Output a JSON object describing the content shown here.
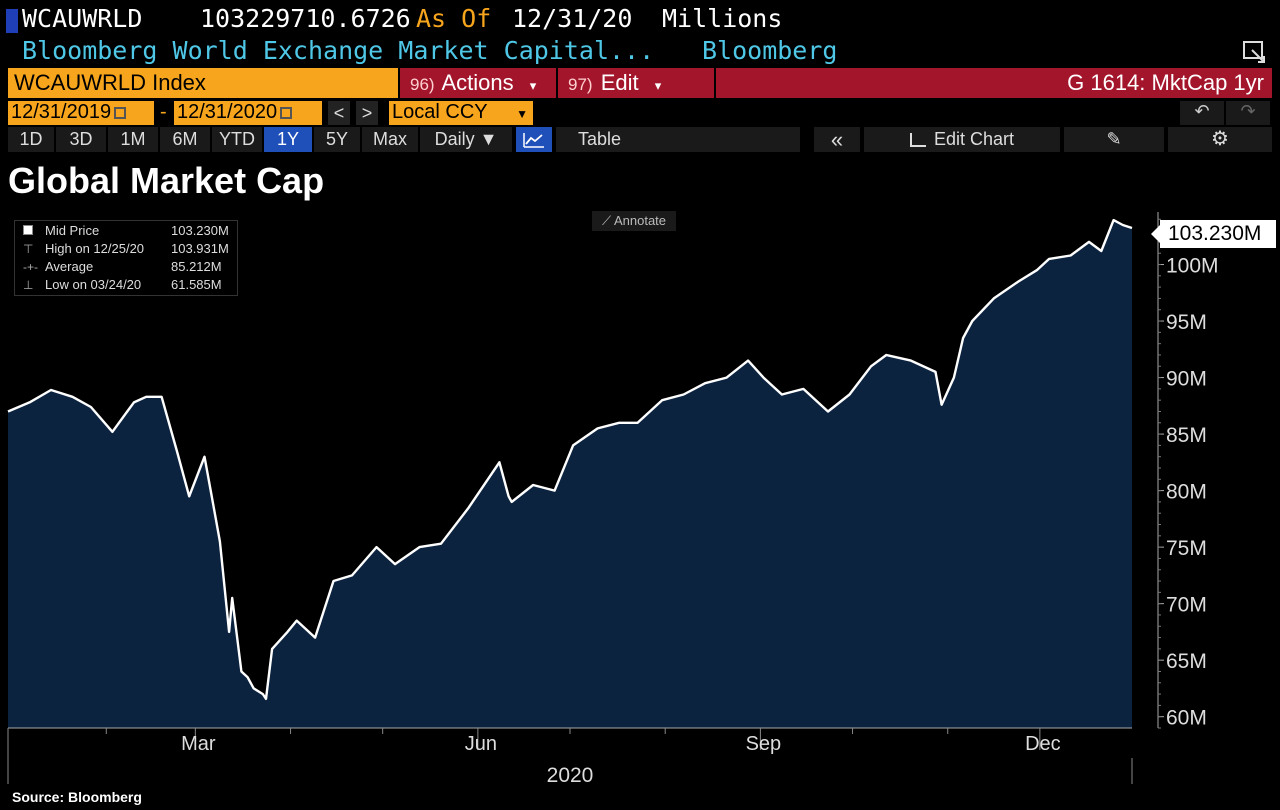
{
  "header": {
    "ticker": "WCAUWRLD",
    "last_value": "103229710.6726",
    "as_of_label": "As Of",
    "as_of_date": "12/31/20",
    "units": "Millions",
    "description": "Bloomberg World Exchange Market Capital...",
    "source_name": "Bloomberg"
  },
  "command_bar": {
    "security": "WCAUWRLD Index",
    "actions_num": "96)",
    "actions_label": "Actions",
    "edit_num": "97)",
    "edit_label": "Edit",
    "command": "G 1614: MktCap 1yr"
  },
  "date_range": {
    "start": "12/31/2019",
    "separator": "-",
    "end": "12/31/2020",
    "prev": "<",
    "next": ">",
    "currency": "Local CCY",
    "undo": "↶",
    "redo": "↷"
  },
  "toolbar": {
    "periods": [
      "1D",
      "3D",
      "1M",
      "6M",
      "YTD",
      "1Y",
      "5Y",
      "Max"
    ],
    "active_period": "1Y",
    "frequency": "Daily ▼",
    "table": "Table",
    "collapse": "«",
    "edit_chart": "Edit Chart",
    "settings": "⚙"
  },
  "legend": {
    "rows": [
      {
        "label": "Mid Price",
        "value": "103.230M"
      },
      {
        "label": "High on 12/25/20",
        "value": "103.931M"
      },
      {
        "label": "Average",
        "value": "85.212M"
      },
      {
        "label": "Low on 03/24/20",
        "value": "61.585M"
      }
    ]
  },
  "annotate_label": "Annotate",
  "last_price_tag": "103.230M",
  "source": "Source: Bloomberg",
  "colors": {
    "accent_orange": "#f7a51c",
    "bloomberg_red": "#a3152b",
    "area_fill": "#0c2340",
    "line": "#ffffff",
    "cyan_text": "#4fc7e6",
    "active_blue": "#1f4fb8"
  },
  "chart_data": {
    "type": "area",
    "title": "Global Market Cap",
    "xlabel": "2020",
    "ylabel": "",
    "ylim": [
      59,
      105
    ],
    "x_tick_labels": [
      "Mar",
      "Jun",
      "Sep",
      "Dec"
    ],
    "y_tick_labels": [
      "60M",
      "65M",
      "70M",
      "75M",
      "80M",
      "85M",
      "90M",
      "95M",
      "100M"
    ],
    "y_ticks": [
      60,
      65,
      70,
      75,
      80,
      85,
      90,
      95,
      100
    ],
    "x_ticks": [
      "2020-03-01",
      "2020-06-01",
      "2020-09-01",
      "2020-12-01"
    ],
    "x_minor_ticks": [
      "2020-02-01",
      "2020-04-01",
      "2020-05-01",
      "2020-07-01",
      "2020-08-01",
      "2020-10-01",
      "2020-11-01"
    ],
    "x_range": [
      "2019-12-31",
      "2020-12-31"
    ],
    "grid": false,
    "y_axis_side": "right",
    "series": [
      {
        "name": "Mid Price",
        "x": [
          "2019-12-31",
          "2020-01-07",
          "2020-01-14",
          "2020-01-21",
          "2020-01-27",
          "2020-02-03",
          "2020-02-10",
          "2020-02-14",
          "2020-02-19",
          "2020-02-24",
          "2020-02-28",
          "2020-03-04",
          "2020-03-06",
          "2020-03-09",
          "2020-03-12",
          "2020-03-13",
          "2020-03-16",
          "2020-03-18",
          "2020-03-20",
          "2020-03-23",
          "2020-03-24",
          "2020-03-26",
          "2020-03-31",
          "2020-04-03",
          "2020-04-09",
          "2020-04-15",
          "2020-04-21",
          "2020-04-29",
          "2020-05-05",
          "2020-05-13",
          "2020-05-20",
          "2020-05-29",
          "2020-06-08",
          "2020-06-11",
          "2020-06-12",
          "2020-06-19",
          "2020-06-26",
          "2020-07-02",
          "2020-07-10",
          "2020-07-17",
          "2020-07-23",
          "2020-07-31",
          "2020-08-07",
          "2020-08-14",
          "2020-08-21",
          "2020-08-28",
          "2020-09-02",
          "2020-09-04",
          "2020-09-08",
          "2020-09-15",
          "2020-09-23",
          "2020-09-30",
          "2020-10-07",
          "2020-10-12",
          "2020-10-20",
          "2020-10-28",
          "2020-10-30",
          "2020-11-03",
          "2020-11-06",
          "2020-11-09",
          "2020-11-16",
          "2020-11-24",
          "2020-11-30",
          "2020-12-04",
          "2020-12-11",
          "2020-12-17",
          "2020-12-21",
          "2020-12-25",
          "2020-12-28",
          "2020-12-31"
        ],
        "values": [
          87.0,
          87.8,
          88.9,
          88.3,
          87.4,
          85.2,
          87.8,
          88.3,
          88.3,
          83.5,
          79.5,
          83.0,
          80.0,
          75.5,
          67.5,
          70.5,
          64.0,
          63.5,
          62.5,
          62.0,
          61.585,
          66.0,
          67.5,
          68.5,
          67.0,
          72.0,
          72.5,
          75.0,
          73.5,
          75.0,
          75.3,
          78.5,
          82.5,
          79.5,
          79.0,
          80.5,
          80.0,
          84.0,
          85.5,
          86.0,
          86.0,
          88.0,
          88.5,
          89.5,
          90.0,
          91.5,
          90.0,
          89.5,
          88.5,
          89.0,
          87.0,
          88.5,
          91.0,
          92.0,
          91.5,
          90.5,
          87.6,
          90.0,
          93.5,
          95.0,
          97.0,
          98.5,
          99.5,
          100.5,
          100.8,
          102.0,
          101.2,
          103.931,
          103.5,
          103.23
        ]
      }
    ]
  }
}
